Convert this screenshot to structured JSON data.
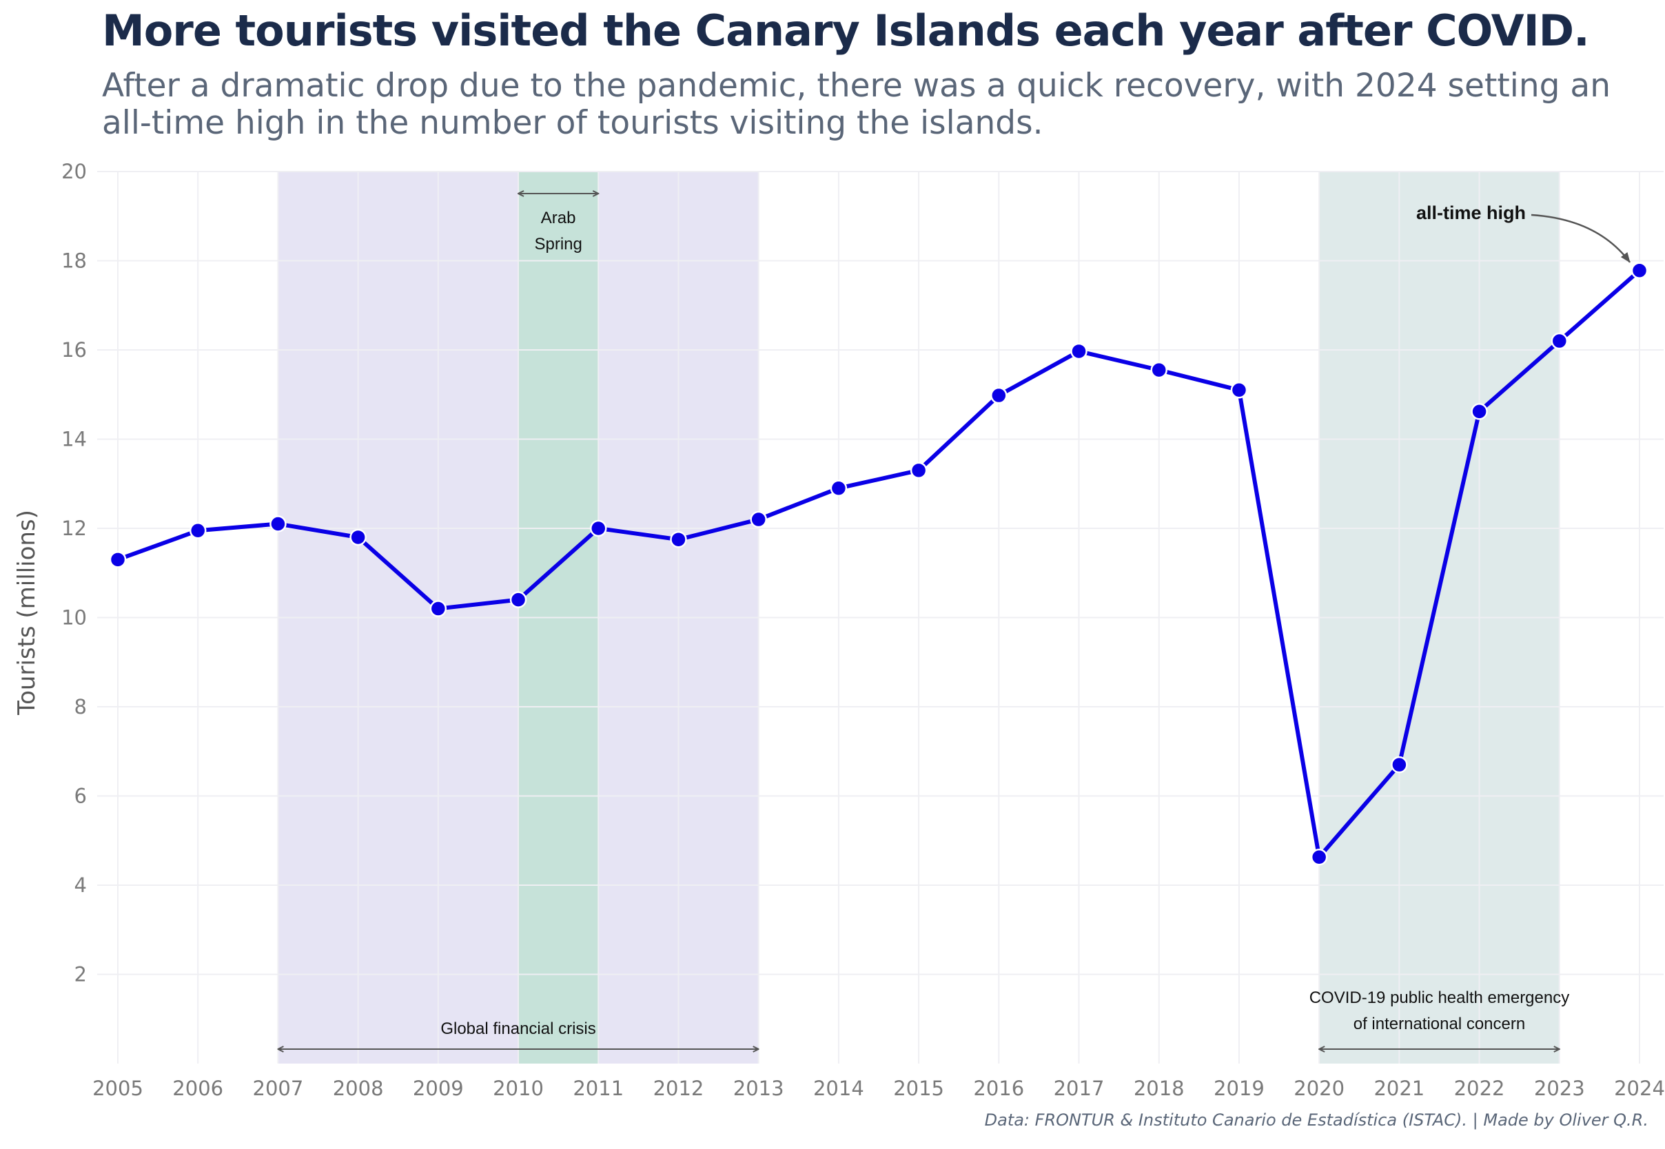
{
  "title": "More tourists visited the Canary Islands each year after COVID.",
  "subtitle": "After a dramatic drop due to the pandemic, there was a quick recovery, with 2024 setting an all-time high in the number of tourists visiting the islands.",
  "caption": "Data: FRONTUR & Instituto Canario de Estadística (ISTAC). | Made by Oliver Q.R.",
  "chart_data": {
    "type": "line",
    "title": "More tourists visited the Canary Islands each year after COVID.",
    "subtitle": "After a dramatic drop due to the pandemic, there was a quick recovery, with 2024 setting an all-time high in the number of tourists visiting the islands.",
    "xlabel": "",
    "ylabel": "Tourists (millions)",
    "x": [
      2005,
      2006,
      2007,
      2008,
      2009,
      2010,
      2011,
      2012,
      2013,
      2014,
      2015,
      2016,
      2017,
      2018,
      2019,
      2020,
      2021,
      2022,
      2023,
      2024
    ],
    "xlim": [
      2005,
      2024
    ],
    "ylim": [
      0,
      20
    ],
    "yticks": [
      2,
      4,
      6,
      8,
      10,
      12,
      14,
      16,
      18,
      20
    ],
    "grid": true,
    "series": [
      {
        "values": [
          11.3,
          11.95,
          12.1,
          11.8,
          10.2,
          10.4,
          12.0,
          11.75,
          12.2,
          12.9,
          13.3,
          14.98,
          15.97,
          15.55,
          15.1,
          4.63,
          6.7,
          14.62,
          16.2,
          17.78
        ],
        "color": "#0a00e6"
      }
    ],
    "shaded_regions": [
      {
        "label": "Global financial crisis",
        "start": 2007,
        "end": 2013,
        "color": "#e6e4f4"
      },
      {
        "label": "Arab Spring",
        "start": 2010,
        "end": 2011,
        "color": "#c6e2d9"
      },
      {
        "label": "COVID-19 public health emergency of international concern",
        "start": 2020,
        "end": 2023,
        "color": "#dfeaea"
      }
    ],
    "annotations": [
      {
        "text": "Arab",
        "text2": "Spring"
      },
      {
        "text": "Global financial crisis"
      },
      {
        "text": "COVID-19 public health emergency",
        "text2": "of international concern"
      },
      {
        "text": "all-time high",
        "target_x": 2024,
        "target_y": 17.78
      }
    ]
  }
}
